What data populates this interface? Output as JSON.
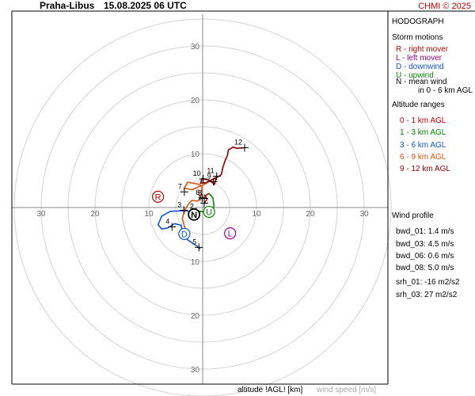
{
  "header": {
    "station": "Praha-Libus",
    "datetime": "15.08.2025 06 UTC",
    "copyright": "CHMI © 2025"
  },
  "footer": {
    "altitude_label": "altitude !AGL! [km]",
    "speed_label": "wind speed [m/s]"
  },
  "panel": {
    "title": "HODOGRAPH",
    "storm_title": "Storm motions",
    "storm": [
      {
        "text": "R - right mover",
        "color": "#cc0000"
      },
      {
        "text": "L - left mover",
        "color": "#990099"
      },
      {
        "text": "D - downwind",
        "color": "#1155cc"
      },
      {
        "text": "U - upwind",
        "color": "#008800"
      },
      {
        "text": "N - mean wind",
        "color": "#000000"
      },
      {
        "text": "in 0 - 6 km AGL",
        "color": "#000000"
      }
    ],
    "alt_title": "Altitude ranges",
    "altitudes": [
      {
        "text": "0 - 1 km AGL",
        "color": "#cc0000"
      },
      {
        "text": "1 - 3 km AGL",
        "color": "#008800"
      },
      {
        "text": "3 - 6 km AGL",
        "color": "#1155cc"
      },
      {
        "text": "6 - 9 km AGL",
        "color": "#dd5511"
      },
      {
        "text": "9 - 12 km AGL",
        "color": "#880000"
      }
    ],
    "profile_title": "Wind profile",
    "profile": [
      "bwd_01: 1.4 m/s",
      "bwd_03: 4.5 m/s",
      "bwd_06: 0.6 m/s",
      "bwd_08: 5.0 m/s",
      "srh_01: -16 m2/s2",
      "srh_03: 27 m2/s2"
    ]
  },
  "chart_data": {
    "type": "hodograph",
    "range_rings": [
      5,
      10,
      15,
      20,
      25,
      30,
      35
    ],
    "tick_labels": [
      10,
      20,
      30
    ],
    "hodograph_segments": [
      {
        "color": "#cc0000",
        "points": [
          [
            0.3,
            0.8
          ],
          [
            0.8,
            1.5
          ],
          [
            0.5,
            2.2
          ],
          [
            1.2,
            2.6
          ]
        ]
      },
      {
        "color": "#008800",
        "points": [
          [
            1.2,
            2.6
          ],
          [
            1.9,
            1.8
          ],
          [
            2.1,
            0.3
          ],
          [
            1.8,
            -0.6
          ],
          [
            0.6,
            -0.9
          ],
          [
            -0.5,
            -0.7
          ],
          [
            -1.2,
            -0.8
          ]
        ]
      },
      {
        "color": "#1155cc",
        "points": [
          [
            -1.2,
            -0.8
          ],
          [
            -3.8,
            -0.6
          ],
          [
            -6.0,
            -0.7
          ],
          [
            -7.6,
            -1.6
          ],
          [
            -8.3,
            -3.2
          ],
          [
            -7.6,
            -4.0
          ],
          [
            -6.5,
            -3.8
          ],
          [
            -5.2,
            -3.0
          ],
          [
            -4.0,
            -3.3
          ],
          [
            -3.8,
            -4.5
          ],
          [
            -2.8,
            -6.0
          ],
          [
            -1.0,
            -7.2
          ],
          [
            -0.5,
            -7.6
          ]
        ]
      },
      {
        "color": "#dd5511",
        "points": [
          [
            -3.3,
            -3.8
          ],
          [
            -3.8,
            -2.0
          ],
          [
            -3.2,
            -0.2
          ],
          [
            -2.5,
            0.8
          ],
          [
            -2.0,
            1.3
          ],
          [
            -0.8,
            1.2
          ],
          [
            -0.3,
            2.2
          ],
          [
            -0.1,
            3.8
          ],
          [
            -0.6,
            4.3
          ],
          [
            -2.8,
            4.7
          ],
          [
            -3.4,
            3.6
          ],
          [
            -2.0,
            3.3
          ],
          [
            0.3,
            4.3
          ],
          [
            1.5,
            5.0
          ],
          [
            2.5,
            5.6
          ]
        ]
      },
      {
        "color": "#880000",
        "points": [
          [
            2.5,
            5.6
          ],
          [
            2.2,
            4.3
          ],
          [
            1.2,
            5.1
          ],
          [
            -0.1,
            5.4
          ],
          [
            -0.4,
            4.5
          ],
          [
            0.6,
            4.6
          ],
          [
            2.0,
            5.3
          ],
          [
            3.2,
            5.9
          ],
          [
            3.5,
            6.2
          ],
          [
            3.7,
            7.3
          ],
          [
            4.1,
            8.5
          ],
          [
            4.6,
            9.7
          ],
          [
            4.8,
            10.7
          ],
          [
            5.6,
            11.2
          ],
          [
            6.4,
            11.0
          ],
          [
            7.8,
            11.1
          ]
        ]
      }
    ],
    "height_markers": [
      {
        "label": "1",
        "u": 0.3,
        "v": 0.8
      },
      {
        "label": "2",
        "u": -1.2,
        "v": -0.8
      },
      {
        "label": "3",
        "u": -3.5,
        "v": -0.5
      },
      {
        "label": "4",
        "u": -5.7,
        "v": -3.6
      },
      {
        "label": "5",
        "u": -0.7,
        "v": -7.4
      },
      {
        "label": "6",
        "u": -0.1,
        "v": 1.8
      },
      {
        "label": "7",
        "u": -3.4,
        "v": 2.9
      },
      {
        "label": "8",
        "u": 0.3,
        "v": 1.7
      },
      {
        "label": "9",
        "u": 2.0,
        "v": 4.8
      },
      {
        "label": "10",
        "u": 0.1,
        "v": 5.3
      },
      {
        "label": "11",
        "u": 2.6,
        "v": 5.8
      },
      {
        "label": "12",
        "u": 7.8,
        "v": 11.1
      }
    ],
    "storm_motions": [
      {
        "label": "R",
        "u": -8.3,
        "v": 2.0,
        "color": "#cc0000"
      },
      {
        "label": "L",
        "u": 5.1,
        "v": -4.8,
        "color": "#990099"
      },
      {
        "label": "D",
        "u": -3.4,
        "v": -4.9,
        "color": "#1155cc"
      },
      {
        "label": "U",
        "u": 1.2,
        "v": -0.8,
        "color": "#008800"
      },
      {
        "label": "N",
        "u": -1.6,
        "v": -1.3,
        "color": "#000000"
      }
    ]
  }
}
